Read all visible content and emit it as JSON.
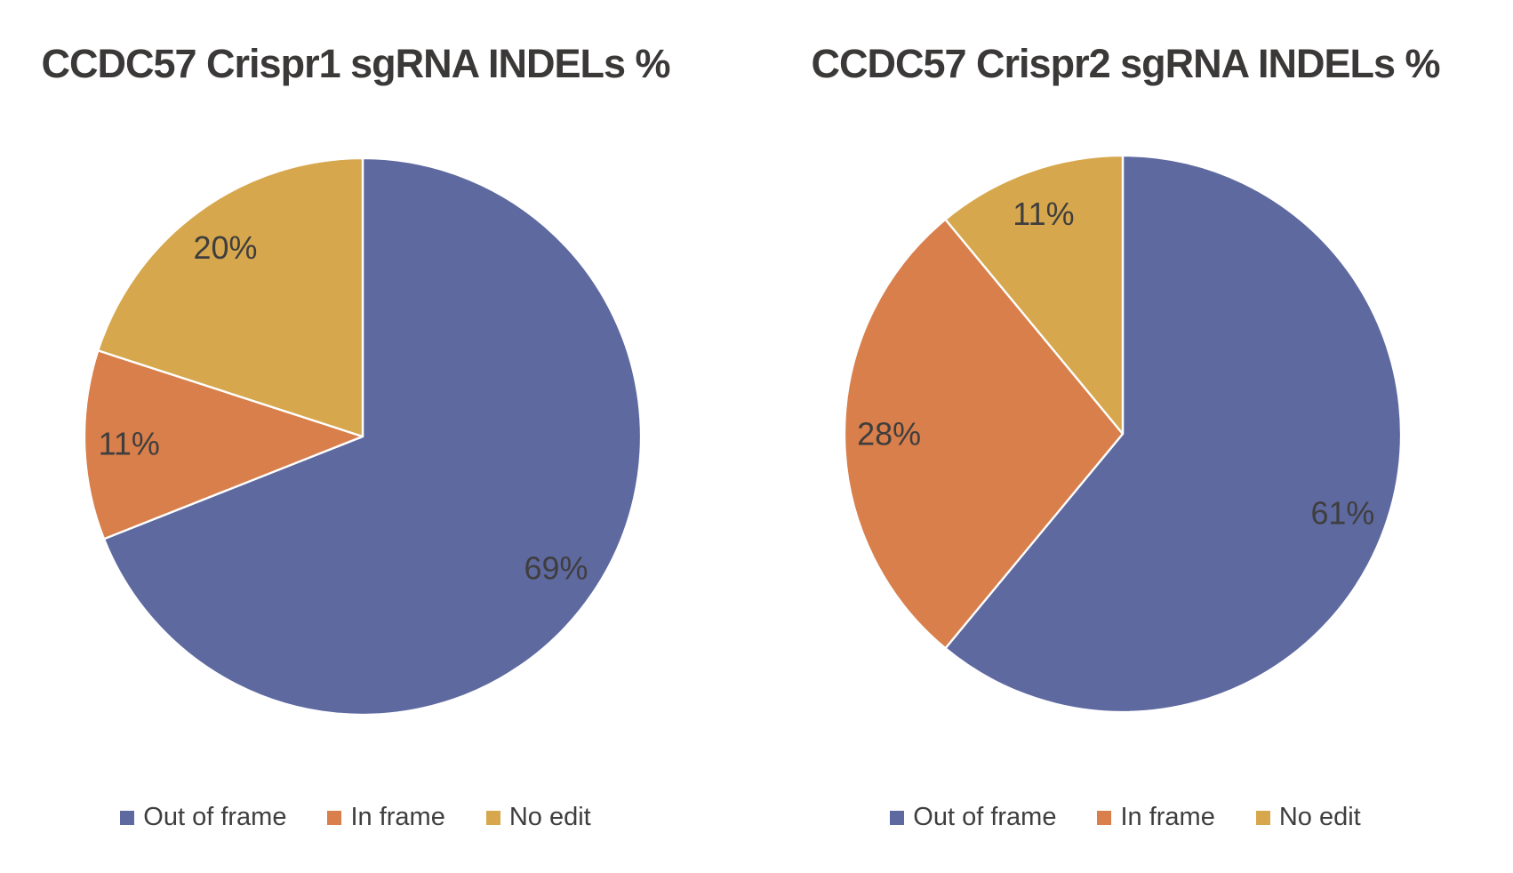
{
  "page": {
    "background_color": "#ffffff",
    "title_text_color": "#3b3838",
    "label_text_color": "#3f3e3e"
  },
  "colors": {
    "out_of_frame": "#5e69a0",
    "in_frame": "#d87f4b",
    "no_edit": "#d6a74d",
    "slice_separator": "#ffffff"
  },
  "chart_data": [
    {
      "type": "pie",
      "title": "CCDC57 Crispr1 sgRNA INDELs %",
      "categories": [
        "Out of frame",
        "In frame",
        "No edit"
      ],
      "values": [
        69,
        11,
        20
      ],
      "labels": [
        "69%",
        "11%",
        "20%"
      ],
      "colors": [
        "#5e69a0",
        "#d87f4b",
        "#d6a74d"
      ],
      "unit": "%",
      "start_angle_deg": 0,
      "direction": "clockwise",
      "label_r_frac": 0.84,
      "legend_position": "bottom"
    },
    {
      "type": "pie",
      "title": "CCDC57 Crispr2 sgRNA INDELs %",
      "categories": [
        "Out of frame",
        "In frame",
        "No edit"
      ],
      "values": [
        61,
        28,
        11
      ],
      "labels": [
        "61%",
        "28%",
        "11%"
      ],
      "colors": [
        "#5e69a0",
        "#d87f4b",
        "#d6a74d"
      ],
      "unit": "%",
      "start_angle_deg": 0,
      "direction": "clockwise",
      "label_r_frac": 0.84,
      "legend_position": "bottom"
    }
  ]
}
